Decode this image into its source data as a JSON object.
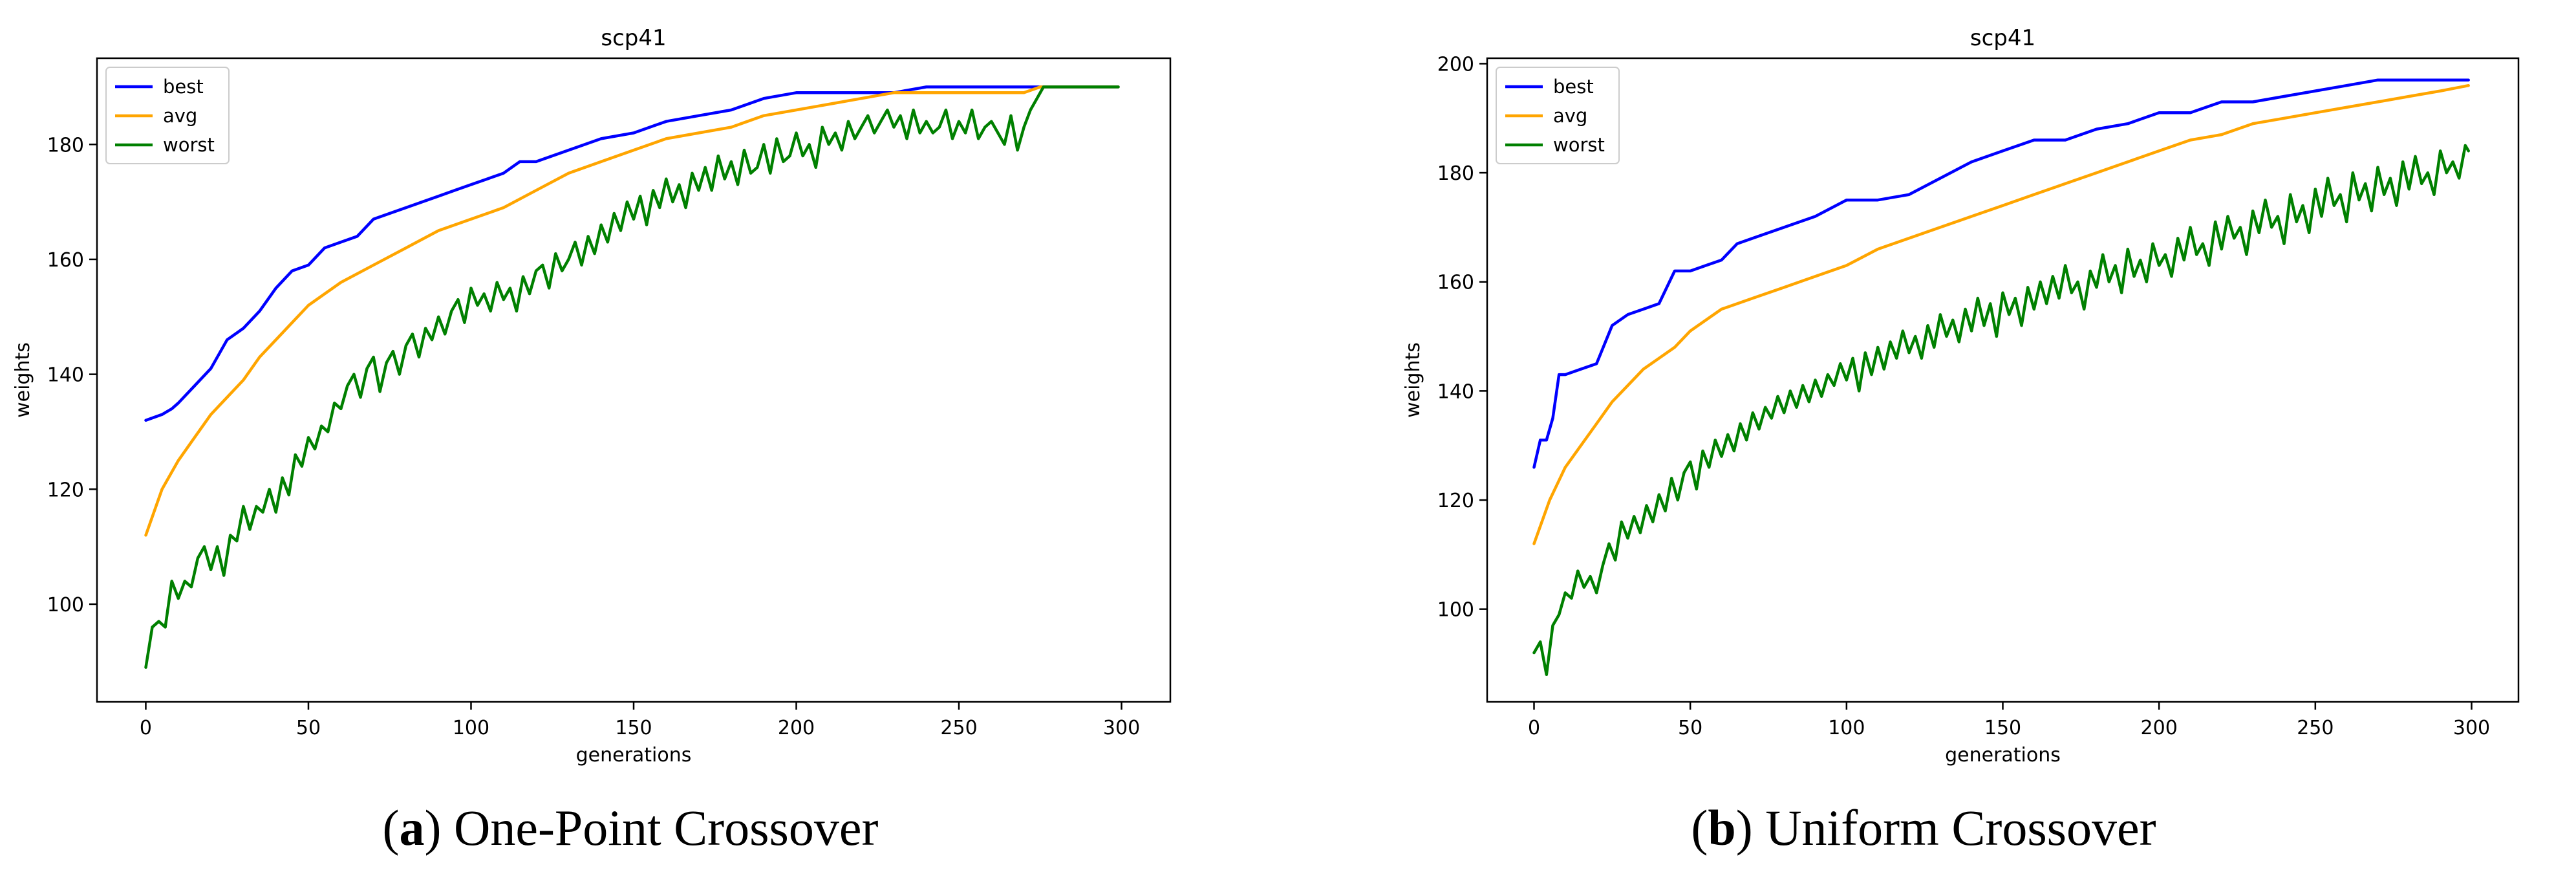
{
  "chart_data": [
    {
      "type": "line",
      "title": "scp41",
      "xlabel": "generations",
      "ylabel": "weights",
      "xlim": [
        -15,
        315
      ],
      "ylim": [
        83,
        195
      ],
      "xticks": [
        0,
        50,
        100,
        150,
        200,
        250,
        300
      ],
      "yticks": [
        100,
        120,
        140,
        160,
        180
      ],
      "legend_position": "top-left",
      "grid": false,
      "caption_letter": "a",
      "caption_text": ") One-Point Crossover",
      "series": [
        {
          "name": "best",
          "color": "#0000ff",
          "x": [
            0,
            5,
            8,
            10,
            15,
            20,
            25,
            30,
            35,
            40,
            45,
            50,
            55,
            60,
            65,
            70,
            75,
            80,
            85,
            90,
            95,
            100,
            105,
            110,
            115,
            120,
            125,
            130,
            140,
            150,
            160,
            170,
            180,
            190,
            200,
            210,
            220,
            230,
            240,
            250,
            260,
            270,
            280,
            290,
            299
          ],
          "y": [
            132,
            133,
            134,
            135,
            138,
            141,
            146,
            148,
            151,
            155,
            158,
            159,
            162,
            163,
            164,
            167,
            168,
            169,
            170,
            171,
            172,
            173,
            174,
            175,
            177,
            177,
            178,
            179,
            181,
            182,
            184,
            185,
            186,
            188,
            189,
            189,
            189,
            189,
            190,
            190,
            190,
            190,
            190,
            190,
            190
          ]
        },
        {
          "name": "avg",
          "color": "#ffa500",
          "x": [
            0,
            5,
            10,
            15,
            20,
            25,
            30,
            35,
            40,
            45,
            50,
            60,
            70,
            80,
            90,
            100,
            110,
            120,
            130,
            140,
            150,
            160,
            170,
            180,
            190,
            200,
            210,
            220,
            230,
            240,
            250,
            260,
            270,
            275,
            280,
            290,
            299
          ],
          "y": [
            112,
            120,
            125,
            129,
            133,
            136,
            139,
            143,
            146,
            149,
            152,
            156,
            159,
            162,
            165,
            167,
            169,
            172,
            175,
            177,
            179,
            181,
            182,
            183,
            185,
            186,
            187,
            188,
            189,
            189,
            189,
            189,
            189,
            190,
            190,
            190,
            190
          ]
        },
        {
          "name": "worst",
          "color": "#008000",
          "x": [
            0,
            2,
            4,
            6,
            8,
            10,
            12,
            14,
            16,
            18,
            20,
            22,
            24,
            26,
            28,
            30,
            32,
            34,
            36,
            38,
            40,
            42,
            44,
            46,
            48,
            50,
            52,
            54,
            56,
            58,
            60,
            62,
            64,
            66,
            68,
            70,
            72,
            74,
            76,
            78,
            80,
            82,
            84,
            86,
            88,
            90,
            92,
            94,
            96,
            98,
            100,
            102,
            104,
            106,
            108,
            110,
            112,
            114,
            116,
            118,
            120,
            122,
            124,
            126,
            128,
            130,
            132,
            134,
            136,
            138,
            140,
            142,
            144,
            146,
            148,
            150,
            152,
            154,
            156,
            158,
            160,
            162,
            164,
            166,
            168,
            170,
            172,
            174,
            176,
            178,
            180,
            182,
            184,
            186,
            188,
            190,
            192,
            194,
            196,
            198,
            200,
            202,
            204,
            206,
            208,
            210,
            212,
            214,
            216,
            218,
            220,
            222,
            224,
            226,
            228,
            230,
            232,
            234,
            236,
            238,
            240,
            242,
            244,
            246,
            248,
            250,
            252,
            254,
            256,
            258,
            260,
            262,
            264,
            266,
            268,
            270,
            272,
            274,
            276,
            280,
            290,
            299
          ],
          "y": [
            89,
            96,
            97,
            96,
            104,
            101,
            104,
            103,
            108,
            110,
            106,
            110,
            105,
            112,
            111,
            117,
            113,
            117,
            116,
            120,
            116,
            122,
            119,
            126,
            124,
            129,
            127,
            131,
            130,
            135,
            134,
            138,
            140,
            136,
            141,
            143,
            137,
            142,
            144,
            140,
            145,
            147,
            143,
            148,
            146,
            150,
            147,
            151,
            153,
            149,
            155,
            152,
            154,
            151,
            156,
            153,
            155,
            151,
            157,
            154,
            158,
            159,
            155,
            161,
            158,
            160,
            163,
            159,
            164,
            161,
            166,
            163,
            168,
            165,
            170,
            167,
            171,
            166,
            172,
            169,
            174,
            170,
            173,
            169,
            175,
            172,
            176,
            172,
            178,
            174,
            177,
            173,
            179,
            175,
            176,
            180,
            175,
            181,
            177,
            178,
            182,
            178,
            180,
            176,
            183,
            180,
            182,
            179,
            184,
            181,
            183,
            185,
            182,
            184,
            186,
            183,
            185,
            181,
            186,
            182,
            184,
            182,
            183,
            186,
            181,
            184,
            182,
            186,
            181,
            183,
            184,
            182,
            180,
            185,
            179,
            183,
            186,
            188,
            190,
            190,
            190,
            190
          ]
        }
      ]
    },
    {
      "type": "line",
      "title": "scp41",
      "xlabel": "generations",
      "ylabel": "weights",
      "xlim": [
        -15,
        315
      ],
      "ylim": [
        83,
        201
      ],
      "xticks": [
        0,
        50,
        100,
        150,
        200,
        250,
        300
      ],
      "yticks": [
        100,
        120,
        140,
        160,
        180,
        200
      ],
      "legend_position": "top-left",
      "grid": false,
      "caption_letter": "b",
      "caption_text": ") Uniform Crossover",
      "series": [
        {
          "name": "best",
          "color": "#0000ff",
          "x": [
            0,
            2,
            4,
            6,
            8,
            10,
            15,
            20,
            25,
            30,
            35,
            40,
            45,
            50,
            55,
            60,
            65,
            70,
            80,
            90,
            100,
            110,
            120,
            130,
            140,
            150,
            160,
            170,
            180,
            190,
            200,
            210,
            220,
            230,
            240,
            250,
            260,
            270,
            280,
            290,
            299
          ],
          "y": [
            126,
            131,
            131,
            135,
            143,
            143,
            144,
            145,
            152,
            154,
            155,
            156,
            162,
            162,
            163,
            164,
            167,
            168,
            170,
            172,
            175,
            175,
            176,
            179,
            182,
            184,
            186,
            186,
            188,
            189,
            191,
            191,
            193,
            193,
            194,
            195,
            196,
            197,
            197,
            197,
            197
          ]
        },
        {
          "name": "avg",
          "color": "#ffa500",
          "x": [
            0,
            5,
            10,
            15,
            20,
            25,
            30,
            35,
            40,
            45,
            50,
            60,
            70,
            80,
            90,
            100,
            110,
            120,
            130,
            140,
            150,
            160,
            170,
            180,
            190,
            200,
            210,
            220,
            230,
            240,
            250,
            260,
            270,
            280,
            290,
            299
          ],
          "y": [
            112,
            120,
            126,
            130,
            134,
            138,
            141,
            144,
            146,
            148,
            151,
            155,
            157,
            159,
            161,
            163,
            166,
            168,
            170,
            172,
            174,
            176,
            178,
            180,
            182,
            184,
            186,
            187,
            189,
            190,
            191,
            192,
            193,
            194,
            195,
            196
          ]
        },
        {
          "name": "worst",
          "color": "#008000",
          "x": [
            0,
            2,
            4,
            6,
            8,
            10,
            12,
            14,
            16,
            18,
            20,
            22,
            24,
            26,
            28,
            30,
            32,
            34,
            36,
            38,
            40,
            42,
            44,
            46,
            48,
            50,
            52,
            54,
            56,
            58,
            60,
            62,
            64,
            66,
            68,
            70,
            72,
            74,
            76,
            78,
            80,
            82,
            84,
            86,
            88,
            90,
            92,
            94,
            96,
            98,
            100,
            102,
            104,
            106,
            108,
            110,
            112,
            114,
            116,
            118,
            120,
            122,
            124,
            126,
            128,
            130,
            132,
            134,
            136,
            138,
            140,
            142,
            144,
            146,
            148,
            150,
            152,
            154,
            156,
            158,
            160,
            162,
            164,
            166,
            168,
            170,
            172,
            174,
            176,
            178,
            180,
            182,
            184,
            186,
            188,
            190,
            192,
            194,
            196,
            198,
            200,
            202,
            204,
            206,
            208,
            210,
            212,
            214,
            216,
            218,
            220,
            222,
            224,
            226,
            228,
            230,
            232,
            234,
            236,
            238,
            240,
            242,
            244,
            246,
            248,
            250,
            252,
            254,
            256,
            258,
            260,
            262,
            264,
            266,
            268,
            270,
            272,
            274,
            276,
            278,
            280,
            282,
            284,
            286,
            288,
            290,
            292,
            294,
            296,
            298,
            299
          ],
          "y": [
            92,
            94,
            88,
            97,
            99,
            103,
            102,
            107,
            104,
            106,
            103,
            108,
            112,
            109,
            116,
            113,
            117,
            114,
            119,
            116,
            121,
            118,
            124,
            120,
            125,
            127,
            122,
            129,
            126,
            131,
            128,
            132,
            129,
            134,
            131,
            136,
            133,
            137,
            135,
            139,
            136,
            140,
            137,
            141,
            138,
            142,
            139,
            143,
            141,
            145,
            142,
            146,
            140,
            147,
            143,
            148,
            144,
            149,
            146,
            151,
            147,
            150,
            146,
            152,
            148,
            154,
            150,
            153,
            149,
            155,
            151,
            157,
            152,
            156,
            150,
            158,
            154,
            157,
            152,
            159,
            155,
            160,
            156,
            161,
            157,
            163,
            158,
            160,
            155,
            162,
            159,
            165,
            160,
            163,
            158,
            166,
            161,
            164,
            160,
            167,
            163,
            165,
            161,
            168,
            164,
            170,
            165,
            167,
            163,
            171,
            166,
            172,
            168,
            170,
            165,
            173,
            169,
            175,
            170,
            172,
            167,
            176,
            171,
            174,
            169,
            177,
            172,
            179,
            174,
            176,
            171,
            180,
            175,
            178,
            173,
            181,
            176,
            179,
            174,
            182,
            177,
            183,
            178,
            180,
            176,
            184,
            180,
            182,
            179,
            185,
            184
          ]
        }
      ]
    }
  ]
}
